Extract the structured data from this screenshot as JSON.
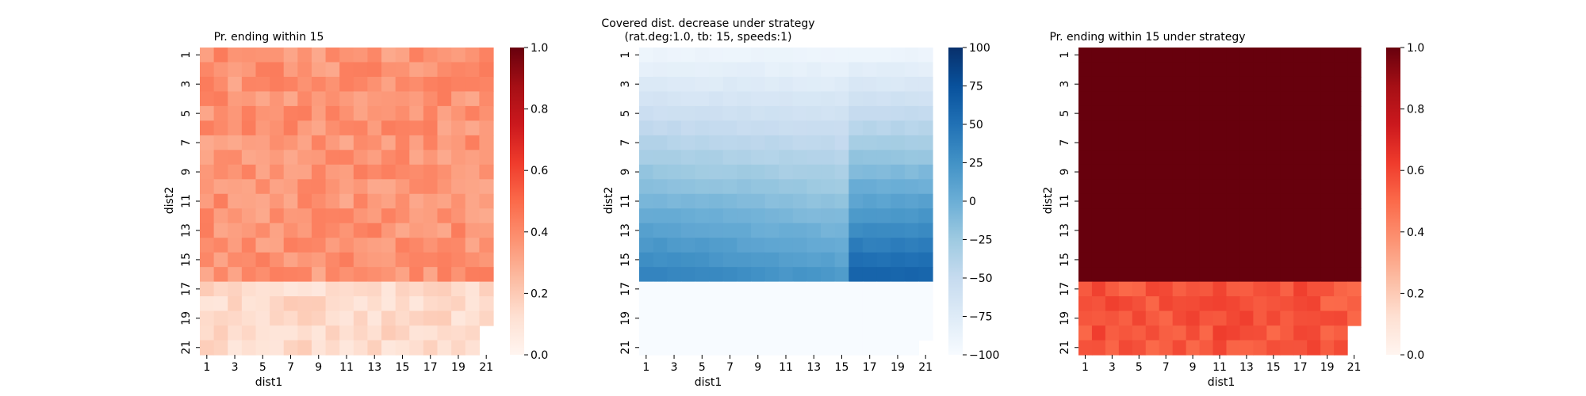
{
  "chart_data": [
    {
      "type": "heatmap",
      "title": "Pr. ending within 15",
      "xlabel": "dist1",
      "ylabel": "dist2",
      "x_tick_labels": [
        "1",
        "3",
        "5",
        "7",
        "9",
        "11",
        "13",
        "15",
        "17",
        "19",
        "21"
      ],
      "y_tick_labels": [
        "1",
        "3",
        "5",
        "7",
        "9",
        "11",
        "13",
        "15",
        "17",
        "19",
        "21"
      ],
      "n_cols": 21,
      "n_rows": 21,
      "colormap": "Reds",
      "vmin": 0.0,
      "vmax": 1.0,
      "colorbar_ticks": [
        "0.0",
        "0.2",
        "0.4",
        "0.6",
        "0.8",
        "1.0"
      ],
      "colorbar_tick_values": [
        0.0,
        0.2,
        0.4,
        0.6,
        0.8,
        1.0
      ],
      "row_groups": [
        {
          "rows": "1-16",
          "value_range": [
            0.3,
            0.45
          ]
        },
        {
          "rows": "17-21",
          "value_range": [
            0.08,
            0.2
          ]
        }
      ],
      "missing_cells": "bottom-right corner (rows 20-21, col 21)"
    },
    {
      "type": "heatmap",
      "title": "Covered dist. decrease under strategy",
      "subtitle": "(rat.deg:1.0, tb: 15, speeds:1)",
      "xlabel": "dist1",
      "ylabel": "dist2",
      "x_tick_labels": [
        "1",
        "3",
        "5",
        "7",
        "9",
        "11",
        "13",
        "15",
        "17",
        "19",
        "21"
      ],
      "y_tick_labels": [
        "1",
        "3",
        "5",
        "7",
        "9",
        "11",
        "13",
        "15",
        "17",
        "19",
        "21"
      ],
      "n_cols": 21,
      "n_rows": 21,
      "colormap": "Blues",
      "vmin": -100,
      "vmax": 100,
      "colorbar_ticks": [
        "−100",
        "−75",
        "−50",
        "−25",
        "0",
        "25",
        "50",
        "75",
        "100"
      ],
      "colorbar_tick_values": [
        -100,
        -75,
        -50,
        -25,
        0,
        25,
        50,
        75,
        100
      ],
      "row_groups": [
        {
          "rows": "1-16",
          "value_range": [
            -90,
            60
          ]
        },
        {
          "rows": "17-21",
          "value": -100
        }
      ],
      "missing_cells": "row 21, col 21"
    },
    {
      "type": "heatmap",
      "title": "Pr. ending within 15 under strategy",
      "xlabel": "dist1",
      "ylabel": "dist2",
      "x_tick_labels": [
        "1",
        "3",
        "5",
        "7",
        "9",
        "11",
        "13",
        "15",
        "17",
        "19",
        "21"
      ],
      "y_tick_labels": [
        "1",
        "3",
        "5",
        "7",
        "9",
        "11",
        "13",
        "15",
        "17",
        "19",
        "21"
      ],
      "n_cols": 21,
      "n_rows": 21,
      "colormap": "Reds",
      "vmin": 0.0,
      "vmax": 1.0,
      "colorbar_ticks": [
        "0.0",
        "0.2",
        "0.4",
        "0.6",
        "0.8",
        "1.0"
      ],
      "colorbar_tick_values": [
        0.0,
        0.2,
        0.4,
        0.6,
        0.8,
        1.0
      ],
      "row_groups": [
        {
          "rows": "1-16",
          "value": 1.0
        },
        {
          "rows": "17-21",
          "value_range": [
            0.5,
            0.62
          ]
        }
      ],
      "missing_cells": "bottom-right corner (rows 20-21, col 21)"
    }
  ]
}
